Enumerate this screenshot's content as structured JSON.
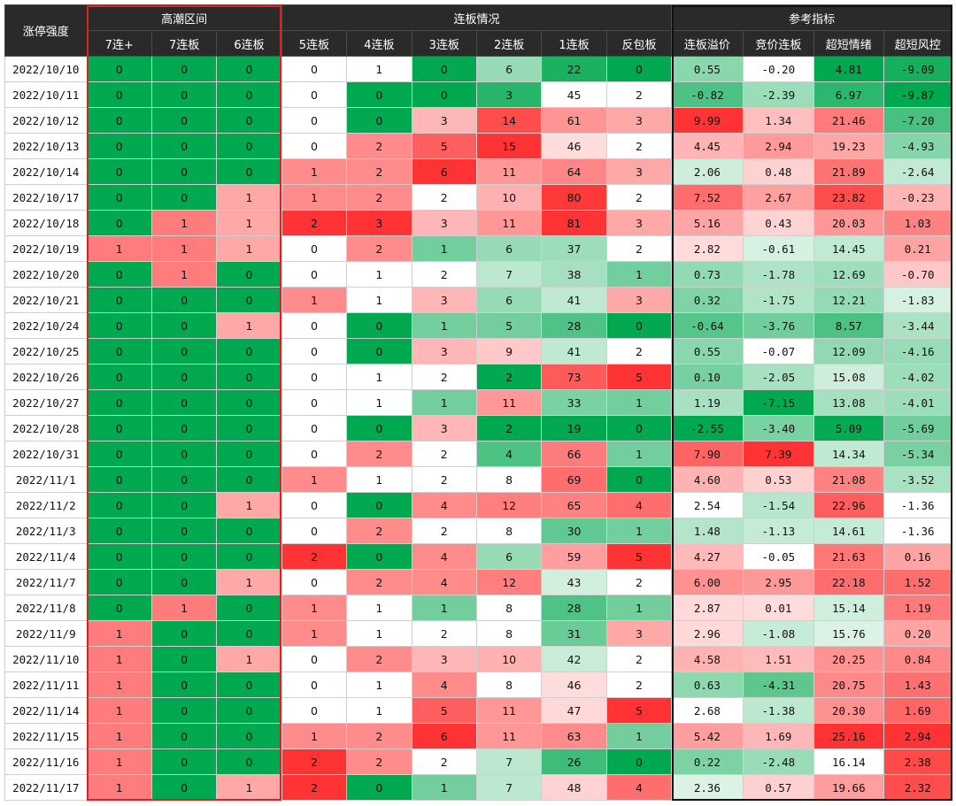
{
  "header": {
    "row_label": "涨停强度",
    "groups": [
      {
        "label": "高潮区间",
        "span": 3
      },
      {
        "label": "连板情况",
        "span": 6
      },
      {
        "label": "参考指标",
        "span": 4
      }
    ],
    "columns": [
      "7连+",
      "7连板",
      "6连板",
      "5连板",
      "4连板",
      "3连板",
      "2连板",
      "1连板",
      "反包板",
      "连板溢价",
      "竞价连板",
      "超短情绪",
      "超短风控"
    ]
  },
  "rows": [
    {
      "date": "2022/10/10",
      "values": [
        "0",
        "0",
        "0",
        "0",
        "1",
        "0",
        "6",
        "22",
        "0",
        "0.55",
        "-0.20",
        "4.81",
        "-9.09"
      ]
    },
    {
      "date": "2022/10/11",
      "values": [
        "0",
        "0",
        "0",
        "0",
        "0",
        "0",
        "3",
        "45",
        "2",
        "-0.82",
        "-2.39",
        "6.97",
        "-9.87"
      ]
    },
    {
      "date": "2022/10/12",
      "values": [
        "0",
        "0",
        "0",
        "0",
        "0",
        "3",
        "14",
        "61",
        "3",
        "9.99",
        "1.34",
        "21.46",
        "-7.20"
      ]
    },
    {
      "date": "2022/10/13",
      "values": [
        "0",
        "0",
        "0",
        "0",
        "2",
        "5",
        "15",
        "46",
        "2",
        "4.45",
        "2.94",
        "19.23",
        "-4.93"
      ]
    },
    {
      "date": "2022/10/14",
      "values": [
        "0",
        "0",
        "0",
        "1",
        "2",
        "6",
        "11",
        "64",
        "3",
        "2.06",
        "0.48",
        "21.89",
        "-2.64"
      ]
    },
    {
      "date": "2022/10/17",
      "values": [
        "0",
        "0",
        "1",
        "1",
        "2",
        "2",
        "10",
        "80",
        "2",
        "7.52",
        "2.67",
        "23.82",
        "-0.23"
      ]
    },
    {
      "date": "2022/10/18",
      "values": [
        "0",
        "1",
        "1",
        "2",
        "3",
        "3",
        "11",
        "81",
        "3",
        "5.16",
        "0.43",
        "20.03",
        "1.03"
      ]
    },
    {
      "date": "2022/10/19",
      "values": [
        "1",
        "1",
        "1",
        "0",
        "2",
        "1",
        "6",
        "37",
        "2",
        "2.82",
        "-0.61",
        "14.45",
        "0.21"
      ]
    },
    {
      "date": "2022/10/20",
      "values": [
        "0",
        "1",
        "0",
        "0",
        "1",
        "2",
        "7",
        "38",
        "1",
        "0.73",
        "-1.78",
        "12.69",
        "-0.70"
      ]
    },
    {
      "date": "2022/10/21",
      "values": [
        "0",
        "0",
        "0",
        "1",
        "1",
        "3",
        "6",
        "41",
        "3",
        "0.32",
        "-1.75",
        "12.21",
        "-1.83"
      ]
    },
    {
      "date": "2022/10/24",
      "values": [
        "0",
        "0",
        "1",
        "0",
        "0",
        "1",
        "5",
        "28",
        "0",
        "-0.64",
        "-3.76",
        "8.57",
        "-3.44"
      ]
    },
    {
      "date": "2022/10/25",
      "values": [
        "0",
        "0",
        "0",
        "0",
        "0",
        "3",
        "9",
        "41",
        "2",
        "0.55",
        "-0.07",
        "12.09",
        "-4.16"
      ]
    },
    {
      "date": "2022/10/26",
      "values": [
        "0",
        "0",
        "0",
        "0",
        "1",
        "2",
        "2",
        "73",
        "5",
        "0.10",
        "-2.05",
        "15.08",
        "-4.02"
      ]
    },
    {
      "date": "2022/10/27",
      "values": [
        "0",
        "0",
        "0",
        "0",
        "1",
        "1",
        "11",
        "33",
        "1",
        "1.19",
        "-7.15",
        "13.08",
        "-4.01"
      ]
    },
    {
      "date": "2022/10/28",
      "values": [
        "0",
        "0",
        "0",
        "0",
        "0",
        "3",
        "2",
        "19",
        "0",
        "-2.55",
        "-3.40",
        "5.09",
        "-5.69"
      ]
    },
    {
      "date": "2022/10/31",
      "values": [
        "0",
        "0",
        "0",
        "0",
        "2",
        "2",
        "4",
        "66",
        "1",
        "7.90",
        "7.39",
        "14.34",
        "-5.34"
      ]
    },
    {
      "date": "2022/11/1",
      "values": [
        "0",
        "0",
        "0",
        "1",
        "1",
        "2",
        "8",
        "69",
        "0",
        "4.60",
        "0.53",
        "21.08",
        "-3.52"
      ]
    },
    {
      "date": "2022/11/2",
      "values": [
        "0",
        "0",
        "1",
        "0",
        "0",
        "4",
        "12",
        "65",
        "4",
        "2.54",
        "-1.54",
        "22.96",
        "-1.36"
      ]
    },
    {
      "date": "2022/11/3",
      "values": [
        "0",
        "0",
        "0",
        "0",
        "2",
        "2",
        "8",
        "30",
        "1",
        "1.48",
        "-1.13",
        "14.61",
        "-1.36"
      ]
    },
    {
      "date": "2022/11/4",
      "values": [
        "0",
        "0",
        "0",
        "2",
        "0",
        "4",
        "6",
        "59",
        "5",
        "4.27",
        "-0.05",
        "21.63",
        "0.16"
      ]
    },
    {
      "date": "2022/11/7",
      "values": [
        "0",
        "0",
        "1",
        "0",
        "2",
        "4",
        "12",
        "43",
        "2",
        "6.00",
        "2.95",
        "22.18",
        "1.52"
      ]
    },
    {
      "date": "2022/11/8",
      "values": [
        "0",
        "1",
        "0",
        "1",
        "1",
        "1",
        "8",
        "28",
        "1",
        "2.87",
        "0.01",
        "15.14",
        "1.19"
      ]
    },
    {
      "date": "2022/11/9",
      "values": [
        "1",
        "0",
        "0",
        "1",
        "1",
        "2",
        "8",
        "31",
        "3",
        "2.96",
        "-1.08",
        "15.76",
        "0.20"
      ]
    },
    {
      "date": "2022/11/10",
      "values": [
        "1",
        "0",
        "1",
        "0",
        "2",
        "3",
        "10",
        "42",
        "2",
        "4.58",
        "1.51",
        "20.25",
        "0.84"
      ]
    },
    {
      "date": "2022/11/11",
      "values": [
        "1",
        "0",
        "0",
        "0",
        "1",
        "4",
        "8",
        "46",
        "2",
        "0.63",
        "-4.31",
        "20.75",
        "1.43"
      ]
    },
    {
      "date": "2022/11/14",
      "values": [
        "1",
        "0",
        "0",
        "0",
        "1",
        "5",
        "11",
        "47",
        "5",
        "2.68",
        "-1.38",
        "20.30",
        "1.69"
      ]
    },
    {
      "date": "2022/11/15",
      "values": [
        "1",
        "0",
        "0",
        "1",
        "2",
        "6",
        "11",
        "63",
        "1",
        "5.42",
        "1.69",
        "25.16",
        "2.94"
      ]
    },
    {
      "date": "2022/11/16",
      "values": [
        "1",
        "0",
        "0",
        "2",
        "2",
        "2",
        "7",
        "26",
        "0",
        "0.22",
        "-2.48",
        "16.14",
        "2.38"
      ]
    },
    {
      "date": "2022/11/17",
      "values": [
        "1",
        "0",
        "1",
        "2",
        "0",
        "1",
        "7",
        "48",
        "4",
        "2.36",
        "0.57",
        "19.66",
        "2.32"
      ]
    }
  ],
  "colors": {
    "header_bg": "#2a2a2a",
    "header_text": "#ffffff",
    "high_red": "#ff2020",
    "strong_green": "#00a84f",
    "neutral": "#ffffff",
    "climax_box": "#e02020",
    "ref_box": "#111111"
  }
}
